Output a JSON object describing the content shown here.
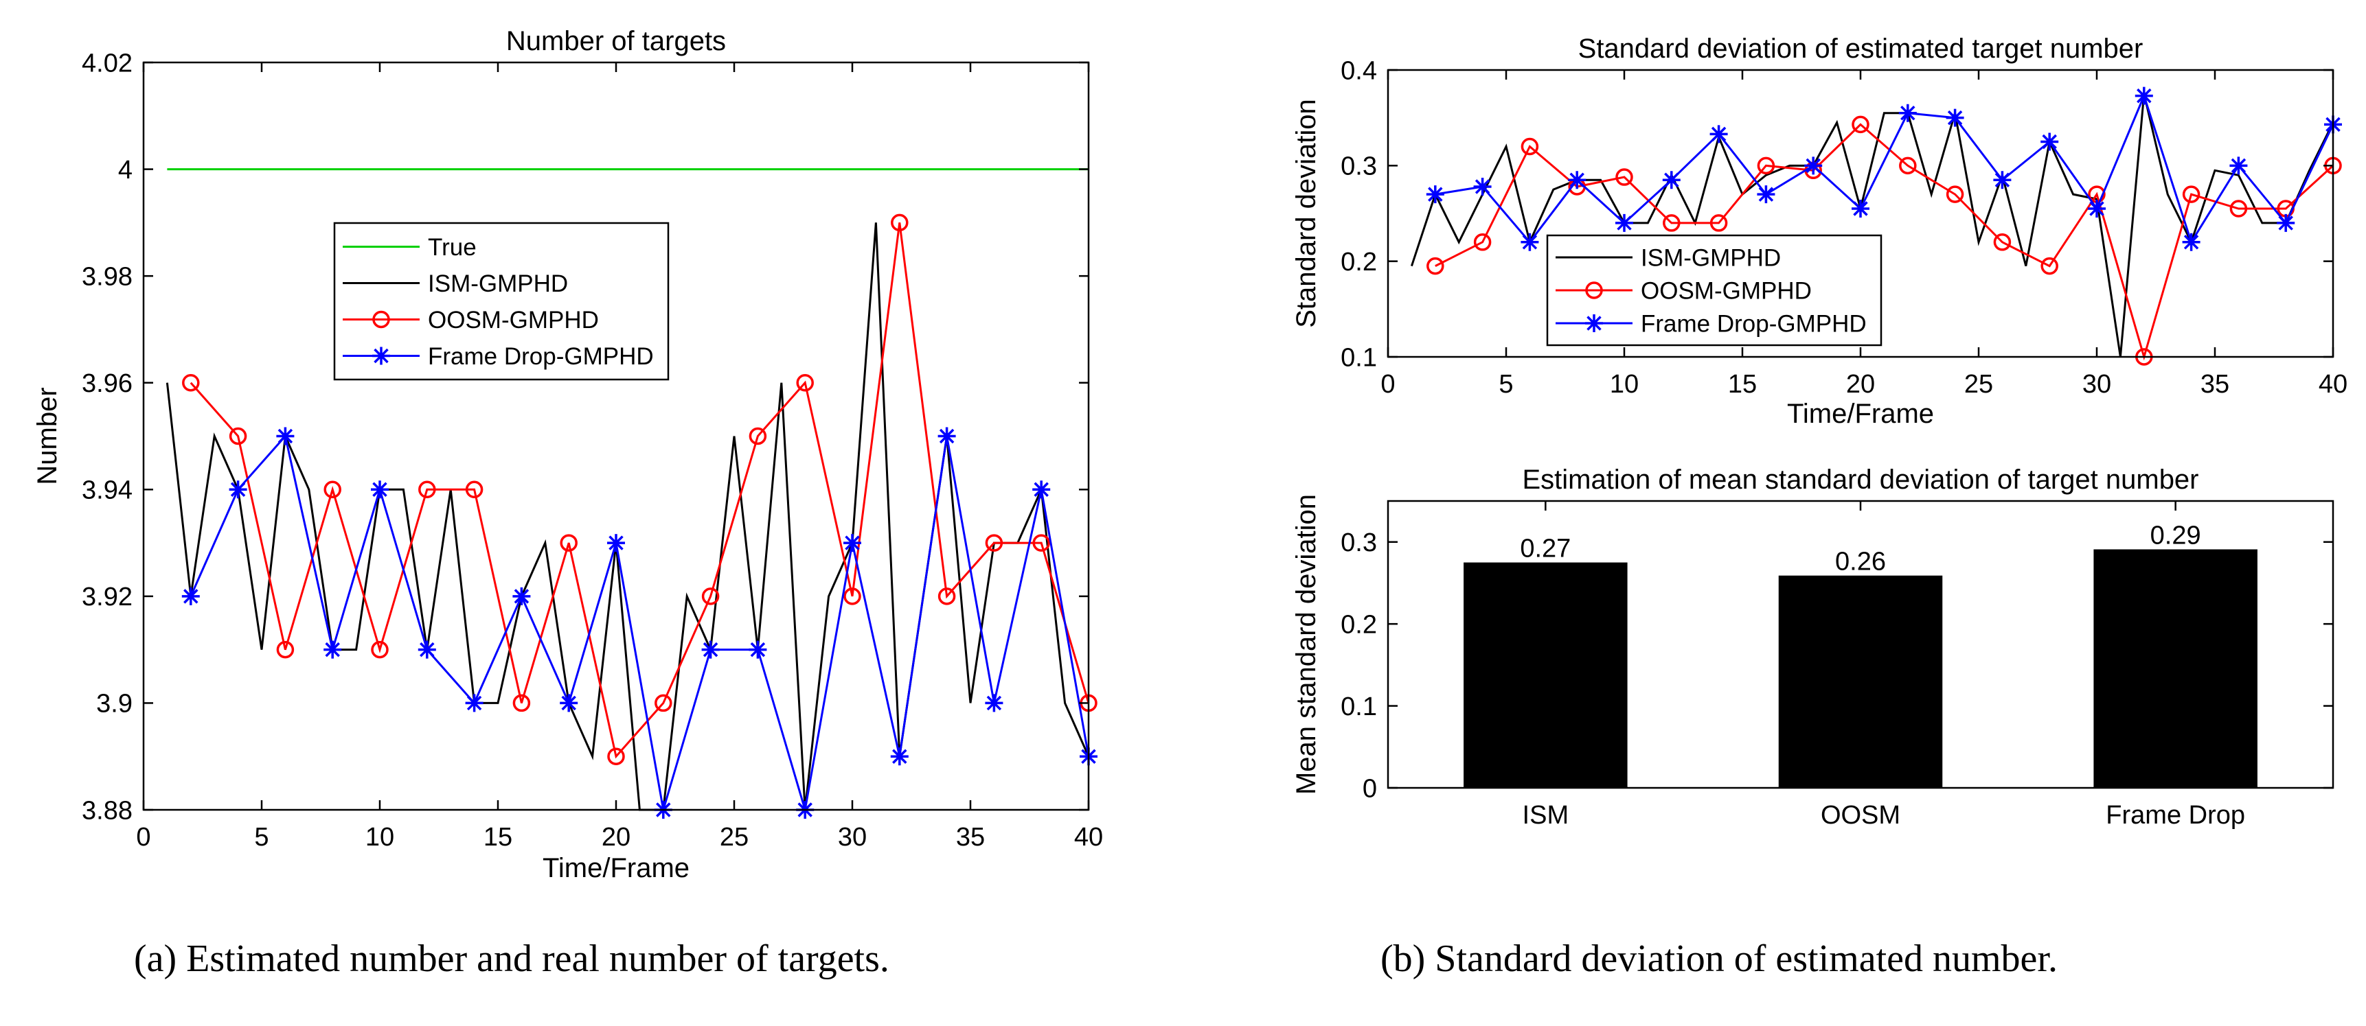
{
  "chart_data": [
    {
      "id": "a",
      "type": "line",
      "title": "Number of targets",
      "xlabel": "Time/Frame",
      "ylabel": "Number",
      "xlim": [
        0,
        40
      ],
      "ylim": [
        3.88,
        4.02
      ],
      "xticks": [
        0,
        5,
        10,
        15,
        20,
        25,
        30,
        35,
        40
      ],
      "xtick_labels": [
        "0",
        "5",
        "10",
        "15",
        "20",
        "25",
        "30",
        "35",
        "40"
      ],
      "yticks": [
        3.88,
        3.9,
        3.92,
        3.94,
        3.96,
        3.98,
        4.0,
        4.02
      ],
      "ytick_labels": [
        "3.88",
        "3.9",
        "3.92",
        "3.94",
        "3.96",
        "3.98",
        "4",
        "4.02"
      ],
      "legend_position": "center-left",
      "series": [
        {
          "name": "True",
          "color": "#00d000",
          "marker": "none",
          "x": [
            1,
            40
          ],
          "y": [
            4.0,
            4.0
          ]
        },
        {
          "name": "ISM-GMPHD",
          "color": "#000000",
          "marker": "none",
          "x": [
            1,
            2,
            3,
            4,
            5,
            6,
            7,
            8,
            9,
            10,
            11,
            12,
            13,
            14,
            15,
            16,
            17,
            18,
            19,
            20,
            21,
            22,
            23,
            24,
            25,
            26,
            27,
            28,
            29,
            30,
            31,
            32,
            33,
            34,
            35,
            36,
            37,
            38,
            39,
            40
          ],
          "y": [
            3.96,
            3.92,
            3.95,
            3.94,
            3.91,
            3.95,
            3.94,
            3.91,
            3.91,
            3.94,
            3.94,
            3.91,
            3.94,
            3.9,
            3.9,
            3.92,
            3.93,
            3.9,
            3.89,
            3.93,
            3.88,
            3.88,
            3.92,
            3.91,
            3.95,
            3.91,
            3.96,
            3.88,
            3.92,
            3.93,
            3.99,
            3.89,
            3.92,
            3.95,
            3.9,
            3.93,
            3.93,
            3.94,
            3.9,
            3.89
          ]
        },
        {
          "name": "OOSM-GMPHD",
          "color": "#ff0000",
          "marker": "circle",
          "x": [
            2,
            4,
            6,
            8,
            10,
            12,
            14,
            16,
            18,
            20,
            22,
            24,
            26,
            28,
            30,
            32,
            34,
            36,
            38,
            40
          ],
          "y": [
            3.96,
            3.95,
            3.91,
            3.94,
            3.91,
            3.94,
            3.94,
            3.9,
            3.93,
            3.89,
            3.9,
            3.92,
            3.95,
            3.96,
            3.92,
            3.99,
            3.92,
            3.93,
            3.93,
            3.9
          ]
        },
        {
          "name": "Frame Drop-GMPHD",
          "color": "#0000ff",
          "marker": "star",
          "x": [
            2,
            4,
            6,
            8,
            10,
            12,
            14,
            16,
            18,
            20,
            22,
            24,
            26,
            28,
            30,
            32,
            34,
            36,
            38,
            40
          ],
          "y": [
            3.92,
            3.94,
            3.95,
            3.91,
            3.94,
            3.91,
            3.9,
            3.92,
            3.9,
            3.93,
            3.88,
            3.91,
            3.91,
            3.88,
            3.93,
            3.89,
            3.95,
            3.9,
            3.94,
            3.89
          ]
        }
      ]
    },
    {
      "id": "b1",
      "type": "line",
      "title": "Standard deviation of estimated target number",
      "xlabel": "Time/Frame",
      "ylabel": "Standard deviation",
      "xlim": [
        0,
        40
      ],
      "ylim": [
        0.1,
        0.4
      ],
      "xticks": [
        0,
        5,
        10,
        15,
        20,
        25,
        30,
        35,
        40
      ],
      "xtick_labels": [
        "0",
        "5",
        "10",
        "15",
        "20",
        "25",
        "30",
        "35",
        "40"
      ],
      "yticks": [
        0.1,
        0.2,
        0.3,
        0.4
      ],
      "ytick_labels": [
        "0.1",
        "0.2",
        "0.3",
        "0.4"
      ],
      "legend_position": "bottom-left",
      "series": [
        {
          "name": "ISM-GMPHD",
          "color": "#000000",
          "marker": "none",
          "x": [
            1,
            2,
            3,
            4,
            5,
            6,
            7,
            8,
            9,
            10,
            11,
            12,
            13,
            14,
            15,
            16,
            17,
            18,
            19,
            20,
            21,
            22,
            23,
            24,
            25,
            26,
            27,
            28,
            29,
            30,
            31,
            32,
            33,
            34,
            35,
            36,
            37,
            38,
            39,
            40
          ],
          "y": [
            0.195,
            0.27,
            0.22,
            0.27,
            0.32,
            0.22,
            0.275,
            0.285,
            0.285,
            0.24,
            0.24,
            0.29,
            0.24,
            0.33,
            0.27,
            0.29,
            0.3,
            0.3,
            0.345,
            0.255,
            0.355,
            0.355,
            0.27,
            0.355,
            0.22,
            0.29,
            0.195,
            0.325,
            0.27,
            0.265,
            0.1,
            0.375,
            0.27,
            0.22,
            0.295,
            0.29,
            0.24,
            0.24,
            0.295,
            0.345
          ]
        },
        {
          "name": "OOSM-GMPHD",
          "color": "#ff0000",
          "marker": "circle",
          "x": [
            2,
            4,
            6,
            8,
            10,
            12,
            14,
            16,
            18,
            20,
            22,
            24,
            26,
            28,
            30,
            32,
            34,
            36,
            38,
            40
          ],
          "y": [
            0.195,
            0.22,
            0.32,
            0.278,
            0.288,
            0.24,
            0.24,
            0.3,
            0.295,
            0.343,
            0.3,
            0.27,
            0.22,
            0.195,
            0.27,
            0.1,
            0.27,
            0.255,
            0.255,
            0.3
          ]
        },
        {
          "name": "Frame Drop-GMPHD",
          "color": "#0000ff",
          "marker": "star",
          "x": [
            2,
            4,
            6,
            8,
            10,
            12,
            14,
            16,
            18,
            20,
            22,
            24,
            26,
            28,
            30,
            32,
            34,
            36,
            38,
            40
          ],
          "y": [
            0.27,
            0.278,
            0.22,
            0.285,
            0.24,
            0.285,
            0.333,
            0.27,
            0.3,
            0.255,
            0.355,
            0.35,
            0.285,
            0.325,
            0.255,
            0.373,
            0.22,
            0.3,
            0.24,
            0.343
          ]
        }
      ]
    },
    {
      "id": "b2",
      "type": "bar",
      "title": "Estimation of mean standard deviation of target number",
      "xlabel": "",
      "ylabel": "Mean standard deviation",
      "categories": [
        "ISM",
        "OOSM",
        "Frame Drop"
      ],
      "values": [
        0.275,
        0.259,
        0.291
      ],
      "data_labels": [
        "0.27",
        "0.26",
        "0.29"
      ],
      "ylim": [
        0,
        0.35
      ],
      "yticks": [
        0,
        0.1,
        0.2,
        0.3
      ],
      "ytick_labels": [
        "0",
        "0.1",
        "0.2",
        "0.3"
      ],
      "bar_color": "#000000"
    }
  ],
  "captions": {
    "a": "(a)  Estimated number and real number of targets.",
    "b": "(b)  Standard deviation of estimated number."
  }
}
